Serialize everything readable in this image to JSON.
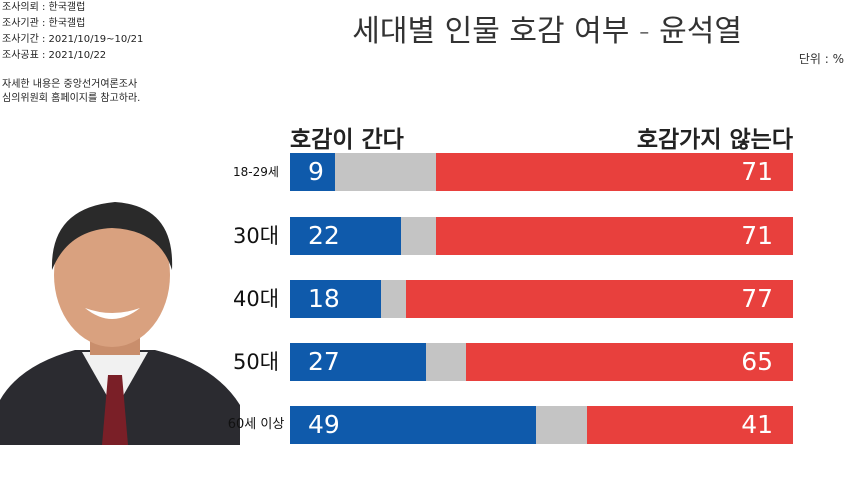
{
  "chart_data": {
    "type": "bar",
    "title": "세대별 인물 호감 여부 - 윤석열",
    "unit": "단위 : %",
    "survey_info": [
      "조사의뢰 : 한국갤럽",
      "조사기관 : 한국갤럽",
      "조사기간 : 2021/10/19~10/21",
      "조사공표 : 2021/10/22"
    ],
    "note": [
      "자세한 내용은 중앙선거여론조사",
      "심의위원회 홈페이지를 참고하라."
    ],
    "categories": [
      "18-29세",
      "30대",
      "40대",
      "50대",
      "60세 이상"
    ],
    "xlim": [
      0,
      100
    ],
    "series": [
      {
        "name": "호감이 간다",
        "color": "#0f5aab",
        "values": [
          9,
          22,
          18,
          27,
          49
        ]
      },
      {
        "name": "호감가지 않는다",
        "color": "#e8403d",
        "values": [
          71,
          71,
          77,
          65,
          41
        ]
      }
    ]
  }
}
